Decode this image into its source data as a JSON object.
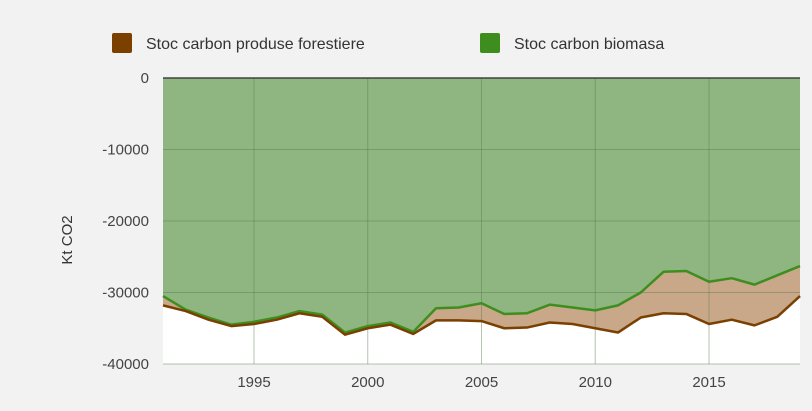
{
  "chart_data": {
    "type": "area",
    "stacked": true,
    "title": "",
    "xlabel": "",
    "ylabel": "Kt CO2",
    "xlim": [
      1991,
      2019
    ],
    "ylim": [
      -40000,
      0
    ],
    "x_ticks": [
      1995,
      2000,
      2005,
      2010,
      2015
    ],
    "y_ticks": [
      0,
      -10000,
      -20000,
      -30000,
      -40000
    ],
    "grid": true,
    "legend_position": "top",
    "x": [
      1991,
      1992,
      1993,
      1994,
      1995,
      1996,
      1997,
      1998,
      1999,
      2000,
      2001,
      2002,
      2003,
      2004,
      2005,
      2006,
      2007,
      2008,
      2009,
      2010,
      2011,
      2012,
      2013,
      2014,
      2015,
      2016,
      2017,
      2018,
      2019
    ],
    "series": [
      {
        "name": "Stoc carbon produse forestiere",
        "color": "#7b3f00",
        "fill": "#c8a889",
        "values": [
          -1300,
          -200,
          -300,
          -200,
          -300,
          -300,
          -300,
          -300,
          -300,
          -300,
          -300,
          -300,
          -1700,
          -1800,
          -2500,
          -2000,
          -2000,
          -2500,
          -2300,
          -2500,
          -3800,
          -3500,
          -5800,
          -6000,
          -5900,
          -5800,
          -5700,
          -5800,
          -4200
        ]
      },
      {
        "name": "Stoc carbon biomasa",
        "color": "#3e8e1f",
        "fill": "#8fb580",
        "values": [
          -30500,
          -32400,
          -33500,
          -34500,
          -34100,
          -33500,
          -32600,
          -33100,
          -35600,
          -34700,
          -34200,
          -35500,
          -32200,
          -32100,
          -31500,
          -33000,
          -32900,
          -31700,
          -32100,
          -32500,
          -31800,
          -30000,
          -27100,
          -27000,
          -28500,
          -28000,
          -28900,
          -27600,
          -26300
        ]
      }
    ]
  }
}
